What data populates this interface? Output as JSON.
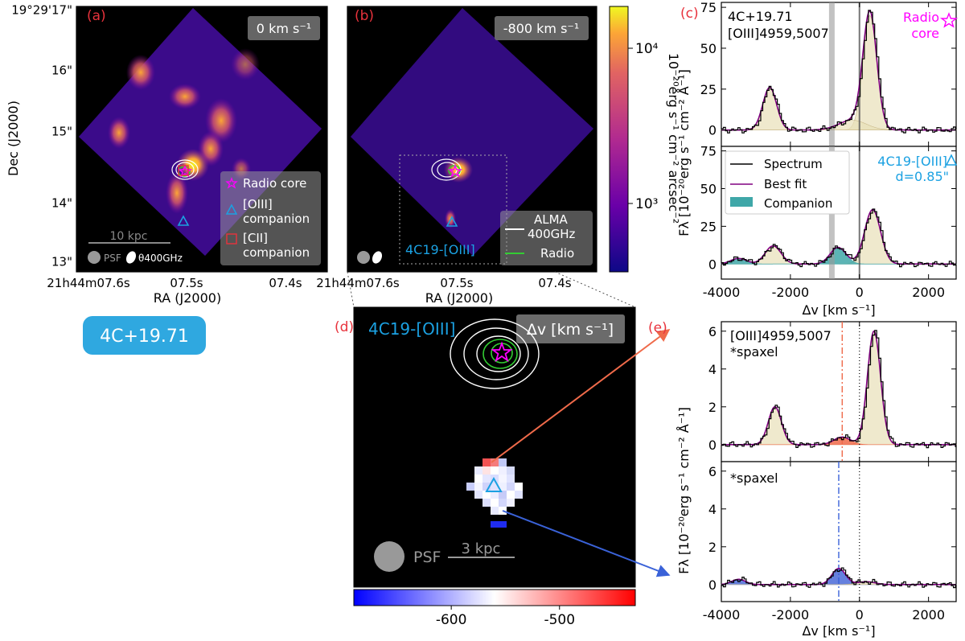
{
  "figure": {
    "badge": "4C+19.71",
    "panel_labels": {
      "a": "(a)",
      "b": "(b)",
      "c": "(c)",
      "d": "(d)",
      "e": "(e)"
    }
  },
  "maps": {
    "dec_ticks": [
      "19°29'17\"",
      "16\"",
      "15\"",
      "14\"",
      "13\""
    ],
    "ra_ticks_a": [
      "21h44m07.6s",
      "07.5s",
      "07.4s"
    ],
    "ra_ticks_b": [
      "21h44m07.6s",
      "07.5s",
      "07.4s"
    ],
    "ylabel": "Dec (J2000)",
    "xlabel": "RA (J2000)",
    "panel_a": {
      "velocity": "0 km s⁻¹",
      "legend": [
        "Radio core",
        "[OIII]",
        "companion",
        "[CII]",
        "companion"
      ],
      "scalebar": "10 kpc",
      "beam_psf": "PSF",
      "beam_alma": "θ400GHz"
    },
    "panel_b": {
      "velocity": "-800 km s⁻¹",
      "legend": [
        "ALMA",
        "400GHz",
        "Radio"
      ],
      "companion_label": "4C19-[OIII]"
    },
    "colorbar": {
      "label": "10⁻²⁰erg s⁻¹ cm⁻² arcsec⁻²",
      "ticks": [
        "10⁴",
        "10³"
      ],
      "values": [
        10000,
        1000
      ]
    }
  },
  "zoom": {
    "title": "4C19-[OIII]",
    "quantity": "Δv [km s⁻¹]",
    "psf": "PSF",
    "scalebar": "3 kpc",
    "colorbar_ticks": [
      "-600",
      "-500"
    ],
    "colorbar_values": [
      -600,
      -500
    ],
    "colorbar_range": [
      -690,
      -430
    ]
  },
  "spectra": {
    "xlabel": "Δv [km s⁻¹]",
    "xticks": [
      "-4000",
      "-2000",
      "0",
      "2000"
    ],
    "ylabel_c": "Fλ [10⁻²⁰erg s⁻¹ cm⁻² Å⁻¹]",
    "ylabel_e": "Fλ [10⁻²⁰erg s⁻¹ cm⁻² Å⁻¹]",
    "c_top": {
      "text1": "4C+19.71",
      "text2": "[OIII]4959,5007",
      "marker1": "Radio",
      "marker2": "core",
      "yticks": [
        "0",
        "25",
        "50",
        "75"
      ]
    },
    "c_bottom": {
      "text1": "4C19-[OIII]",
      "text2": "d=0.85\"",
      "yticks": [
        "0",
        "25",
        "50",
        "75"
      ],
      "legend": [
        "Spectrum",
        "Best fit",
        "Companion"
      ]
    },
    "e_top": {
      "text1": "[OIII]4959,5007",
      "text2": "*spaxel",
      "yticks": [
        "0",
        "2",
        "4",
        "6"
      ]
    },
    "e_bottom": {
      "text1": "*spaxel",
      "yticks": [
        "0",
        "2",
        "4",
        "6"
      ]
    }
  },
  "chart_data": [
    {
      "type": "line",
      "title": "(c) 4C+19.71 [OIII]4959,5007 radio core spectrum",
      "xlabel": "Δv [km s⁻¹]",
      "ylabel": "Fλ [10⁻²⁰erg s⁻¹ cm⁻² Å⁻¹]",
      "xlim": [
        -4000,
        2800
      ],
      "ylim": [
        -10,
        78
      ],
      "vlines": [
        -800,
        0
      ],
      "components": [
        {
          "name": "main",
          "center": 300,
          "sigma": 200,
          "amp": 70
        },
        {
          "name": "main_4959",
          "center": -2600,
          "sigma": 200,
          "amp": 26
        },
        {
          "name": "broad",
          "center": -200,
          "sigma": 400,
          "amp": 6
        }
      ]
    },
    {
      "type": "line",
      "title": "(c) 4C19-[OIII] companion spectrum d=0.85\"",
      "xlabel": "Δv [km s⁻¹]",
      "ylabel": "Fλ [10⁻²⁰erg s⁻¹ cm⁻² Å⁻¹]",
      "xlim": [
        -4000,
        2800
      ],
      "ylim": [
        -10,
        78
      ],
      "vlines": [
        -800,
        0
      ],
      "components": [
        {
          "name": "host",
          "center": 380,
          "sigma": 230,
          "amp": 36
        },
        {
          "name": "host_4959",
          "center": -2500,
          "sigma": 230,
          "amp": 12
        },
        {
          "name": "companion",
          "center": -620,
          "sigma": 230,
          "amp": 11
        },
        {
          "name": "companion_4959",
          "center": -3500,
          "sigma": 230,
          "amp": 3.7
        }
      ]
    },
    {
      "type": "line",
      "title": "(e) *spaxel red",
      "xlabel": "Δv [km s⁻¹]",
      "ylabel": "Fλ [10⁻²⁰erg s⁻¹ cm⁻² Å⁻¹]",
      "xlim": [
        -4000,
        2800
      ],
      "ylim": [
        -0.9,
        6.5
      ],
      "vlines": [
        -500,
        0
      ],
      "components": [
        {
          "name": "host",
          "center": 420,
          "sigma": 190,
          "amp": 6.0
        },
        {
          "name": "host_4959",
          "center": -2450,
          "sigma": 190,
          "amp": 2.0
        },
        {
          "name": "companion",
          "center": -500,
          "sigma": 240,
          "amp": 0.4
        }
      ]
    },
    {
      "type": "line",
      "title": "(e) *spaxel blue",
      "xlabel": "Δv [km s⁻¹]",
      "ylabel": "Fλ [10⁻²⁰erg s⁻¹ cm⁻² Å⁻¹]",
      "xlim": [
        -4000,
        2800
      ],
      "ylim": [
        -0.9,
        6.5
      ],
      "vlines": [
        -600,
        0
      ],
      "components": [
        {
          "name": "companion",
          "center": -600,
          "sigma": 200,
          "amp": 0.85
        },
        {
          "name": "companion_4959",
          "center": -3500,
          "sigma": 200,
          "amp": 0.28
        },
        {
          "name": "host",
          "center": 200,
          "sigma": 250,
          "amp": 0.15
        }
      ]
    }
  ]
}
